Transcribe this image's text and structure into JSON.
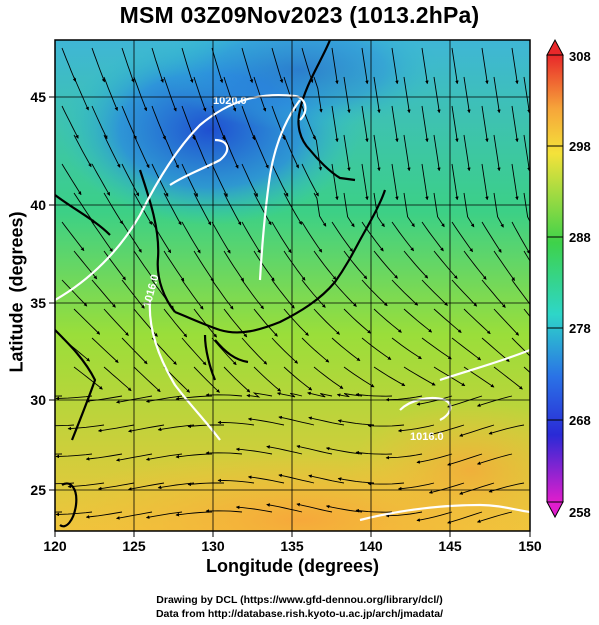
{
  "title": "MSM 03Z09Nov2023 (1013.2hPa)",
  "x_axis": {
    "label": "Longitude (degrees)",
    "ticks": [
      "120",
      "125",
      "130",
      "135",
      "140",
      "145",
      "150"
    ]
  },
  "y_axis": {
    "label": "Latitude  (degrees)",
    "ticks": [
      "25",
      "30",
      "35",
      "40",
      "45"
    ]
  },
  "colorbar": {
    "ticks": [
      "308",
      "298",
      "288",
      "278",
      "268",
      "258"
    ],
    "min": 258,
    "max": 308
  },
  "contour_labels": [
    "1020.0",
    "1016.0",
    "1016.0"
  ],
  "credits": {
    "line1": "Drawing by DCL (https://www.gfd-dennou.org/library/dcl/)",
    "line2": "Data from http://database.rish.kyoto-u.ac.jp/arch/jmadata/"
  },
  "map": {
    "lon_range": [
      120,
      150
    ],
    "lat_range": [
      22.5,
      47.5
    ],
    "colors": {
      "cold": "#1f5fd0",
      "cool": "#28c8c0",
      "mild": "#3cd64a",
      "warm": "#c8e63a",
      "hot": "#f5b43a",
      "isobar": "#ffffff"
    }
  }
}
